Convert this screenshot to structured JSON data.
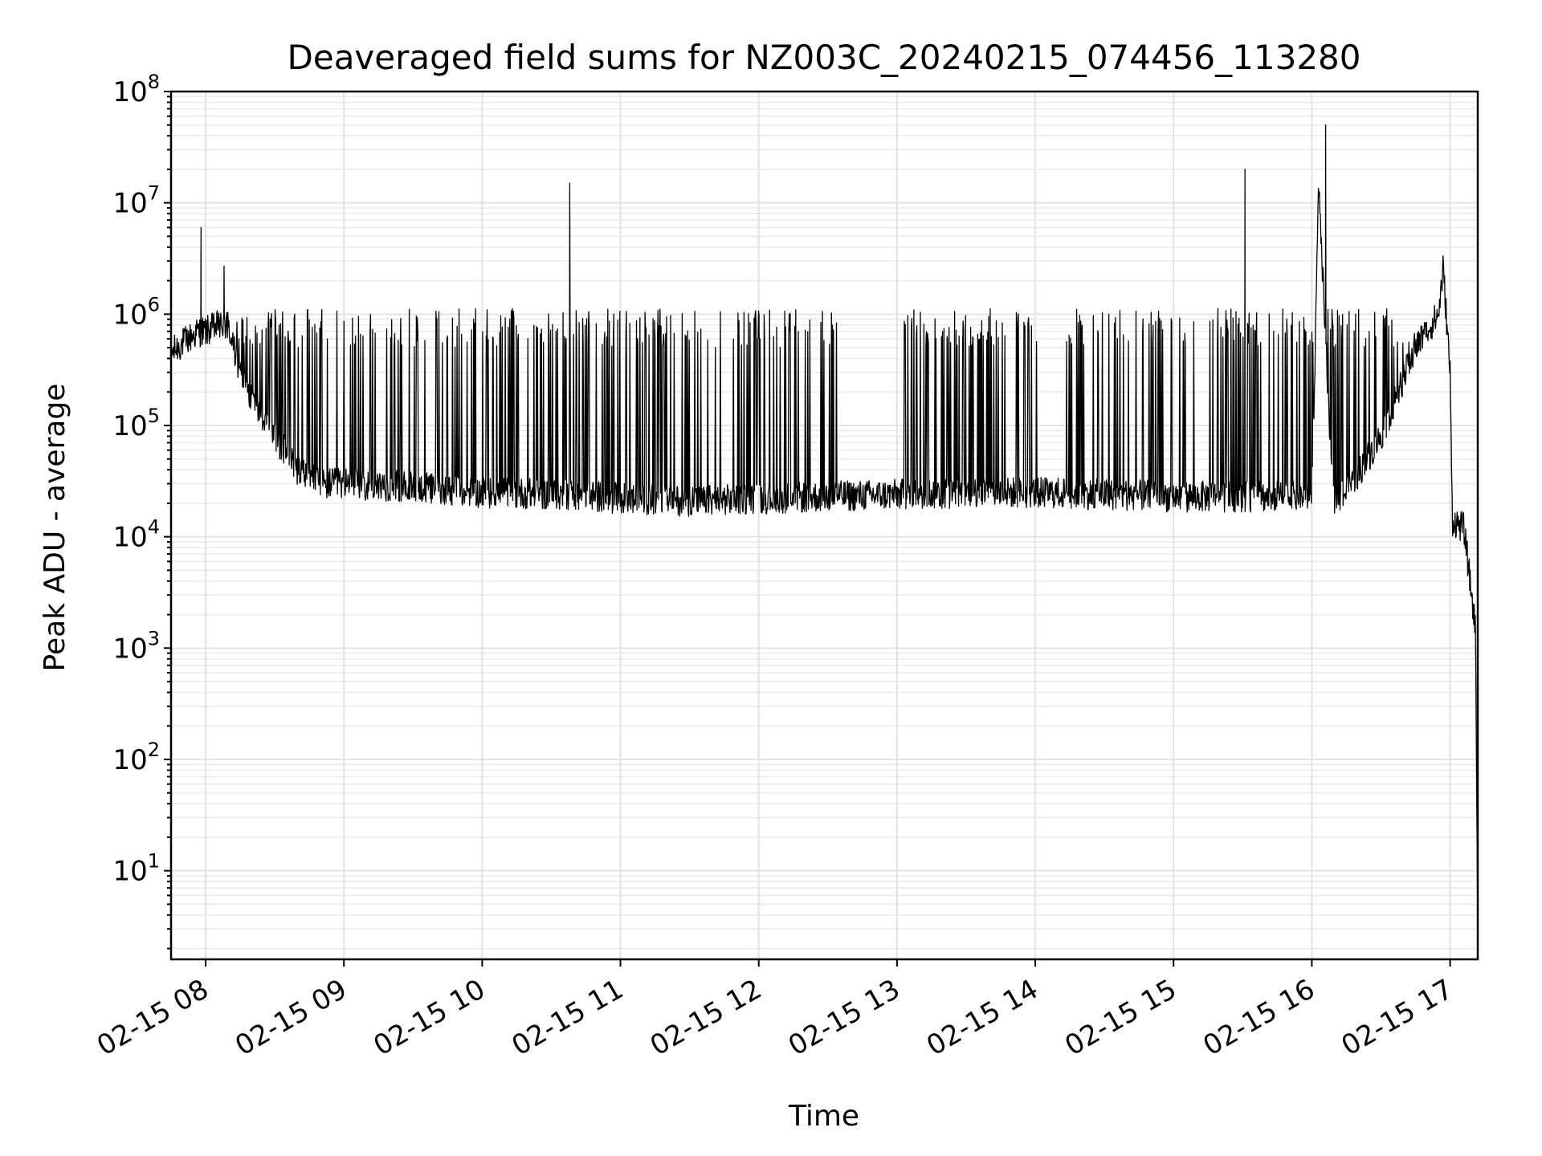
{
  "chart_data": {
    "type": "line",
    "title": "Deaveraged field sums for NZ003C_20240215_074456_113280",
    "xlabel": "Time",
    "ylabel": "Peak ADU - average",
    "yscale": "log",
    "ylim": [
      1.6,
      100000000
    ],
    "xlim": [
      "2024-02-15 07:45",
      "2024-02-15 17:12"
    ],
    "grid": true,
    "legend": "none",
    "line_color": "#000000",
    "x_ticks": [
      "02-15 08",
      "02-15 09",
      "02-15 10",
      "02-15 11",
      "02-15 12",
      "02-15 13",
      "02-15 14",
      "02-15 15",
      "02-15 16",
      "02-15 17"
    ],
    "y_ticks": [
      {
        "base": "10",
        "exp": "1"
      },
      {
        "base": "10",
        "exp": "2"
      },
      {
        "base": "10",
        "exp": "3"
      },
      {
        "base": "10",
        "exp": "4"
      },
      {
        "base": "10",
        "exp": "5"
      },
      {
        "base": "10",
        "exp": "6"
      },
      {
        "base": "10",
        "exp": "7"
      },
      {
        "base": "10",
        "exp": "8"
      }
    ],
    "series": [
      {
        "x": [
          "2024-02-15 07:45",
          "2024-02-15 07:50",
          "2024-02-15 07:55",
          "2024-02-15 07:57",
          "2024-02-15 07:58",
          "2024-02-15 08:00",
          "2024-02-15 08:06",
          "2024-02-15 08:08",
          "2024-02-15 08:10",
          "2024-02-15 08:15",
          "2024-02-15 08:20",
          "2024-02-15 08:30",
          "2024-02-15 08:40",
          "2024-02-15 08:50",
          "2024-02-15 09:00",
          "2024-02-15 09:30",
          "2024-02-15 10:00",
          "2024-02-15 10:35",
          "2024-02-15 10:38",
          "2024-02-15 10:41",
          "2024-02-15 11:00",
          "2024-02-15 11:30",
          "2024-02-15 12:00",
          "2024-02-15 12:30",
          "2024-02-15 13:00",
          "2024-02-15 13:30",
          "2024-02-15 14:00",
          "2024-02-15 14:30",
          "2024-02-15 15:00",
          "2024-02-15 15:28",
          "2024-02-15 15:31",
          "2024-02-15 15:34",
          "2024-02-15 15:50",
          "2024-02-15 16:00",
          "2024-02-15 16:03",
          "2024-02-15 16:06",
          "2024-02-15 16:09",
          "2024-02-15 16:15",
          "2024-02-15 16:30",
          "2024-02-15 16:45",
          "2024-02-15 16:55",
          "2024-02-15 16:57",
          "2024-02-15 17:00",
          "2024-02-15 17:01",
          "2024-02-15 17:06",
          "2024-02-15 17:11",
          "2024-02-15 17:12"
        ],
        "y": [
          450000,
          550000,
          650000,
          700000,
          6000000,
          700000,
          800000,
          2700000,
          750000,
          300000,
          180000,
          80000,
          40000,
          30000,
          30000,
          28000,
          25000,
          24000,
          15000000,
          24000,
          22000,
          21000,
          22000,
          23000,
          24000,
          25000,
          25000,
          24000,
          23000,
          23000,
          20000000,
          23000,
          23000,
          22000,
          14000000,
          50000000,
          22000,
          25000,
          80000,
          500000,
          1000000,
          2600000,
          300000,
          14000,
          12000,
          1500,
          4
        ]
      }
    ]
  }
}
